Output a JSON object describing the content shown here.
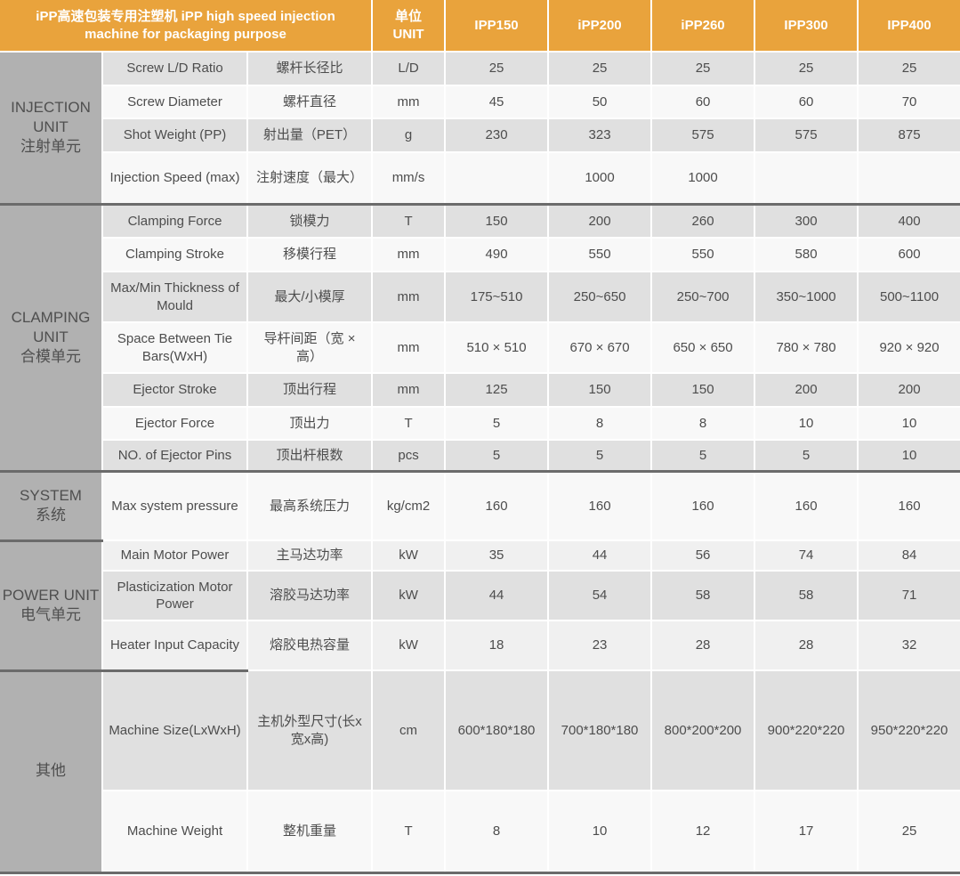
{
  "header": {
    "title": "iPP高速包装专用注塑机 iPP high speed injection machine for packaging purpose",
    "unit_label": "单位\nUNIT",
    "models": [
      "IPP150",
      "iPP200",
      "iPP260",
      "IPP300",
      "IPP400"
    ]
  },
  "colors": {
    "accent_orange": "#E9A33C",
    "section_label_bg": "#B1B1B1",
    "row_gray": "#E0E0E0",
    "row_white": "#F8F8F8",
    "row_light": "#F0F0F0",
    "section_divider": "#6B6B6B",
    "text": "#4D4D4D"
  },
  "sections": [
    {
      "label_en": "INJECTION UNIT",
      "label_zh": "注射单元",
      "rows": [
        {
          "name_en": "Screw L/D Ratio",
          "name_zh": "螺杆长径比",
          "unit": "L/D",
          "values": [
            "25",
            "25",
            "25",
            "25",
            "25"
          ],
          "shade": "gray"
        },
        {
          "name_en": "Screw Diameter",
          "name_zh": "螺杆直径",
          "unit": "mm",
          "values": [
            "45",
            "50",
            "60",
            "60",
            "70"
          ],
          "shade": "white"
        },
        {
          "name_en": "Shot Weight (PP)",
          "name_zh": "射出量（PET）",
          "unit": "g",
          "values": [
            "230",
            "323",
            "575",
            "575",
            "875"
          ],
          "shade": "gray"
        },
        {
          "name_en": "Injection Speed (max)",
          "name_zh": "注射速度（最大）",
          "unit": "mm/s",
          "values": [
            "",
            "1000",
            "1000",
            "",
            ""
          ],
          "shade": "white"
        }
      ]
    },
    {
      "label_en": "CLAMPING UNIT",
      "label_zh": "合模单元",
      "rows": [
        {
          "name_en": "Clamping Force",
          "name_zh": "锁模力",
          "unit": "T",
          "values": [
            "150",
            "200",
            "260",
            "300",
            "400"
          ],
          "shade": "gray"
        },
        {
          "name_en": "Clamping Stroke",
          "name_zh": "移模行程",
          "unit": "mm",
          "values": [
            "490",
            "550",
            "550",
            "580",
            "600"
          ],
          "shade": "white"
        },
        {
          "name_en": "Max/Min Thickness of Mould",
          "name_zh": "最大/小模厚",
          "unit": "mm",
          "values": [
            "175~510",
            "250~650",
            "250~700",
            "350~1000",
            "500~1100"
          ],
          "shade": "gray"
        },
        {
          "name_en": "Space Between Tie Bars(WxH)",
          "name_zh": "导杆间距（宽 × 高）",
          "unit": "mm",
          "values": [
            "510 × 510",
            "670 × 670",
            "650 × 650",
            "780 × 780",
            "920 × 920"
          ],
          "shade": "white"
        },
        {
          "name_en": "Ejector Stroke",
          "name_zh": "顶出行程",
          "unit": "mm",
          "values": [
            "125",
            "150",
            "150",
            "200",
            "200"
          ],
          "shade": "gray"
        },
        {
          "name_en": "Ejector Force",
          "name_zh": "顶出力",
          "unit": "T",
          "values": [
            "5",
            "8",
            "8",
            "10",
            "10"
          ],
          "shade": "white"
        },
        {
          "name_en": "NO. of Ejector Pins",
          "name_zh": "顶出杆根数",
          "unit": "pcs",
          "values": [
            "5",
            "5",
            "5",
            "5",
            "10"
          ],
          "shade": "gray"
        }
      ]
    },
    {
      "label_en": "SYSTEM",
      "label_zh": "系统",
      "rows": [
        {
          "name_en": "Max system pressure",
          "name_zh": "最高系统压力",
          "unit": "kg/cm2",
          "values": [
            "160",
            "160",
            "160",
            "160",
            "160"
          ],
          "shade": "white"
        }
      ]
    },
    {
      "label_en": "POWER UNIT",
      "label_zh": "电气单元",
      "rows": [
        {
          "name_en": "Main Motor Power",
          "name_zh": "主马达功率",
          "unit": "kW",
          "values": [
            "35",
            "44",
            "56",
            "74",
            "84"
          ],
          "shade": "light"
        },
        {
          "name_en": "Plasticization Motor Power",
          "name_zh": "溶胶马达功率",
          "unit": "kW",
          "values": [
            "44",
            "54",
            "58",
            "58",
            "71"
          ],
          "shade": "gray"
        },
        {
          "name_en": "Heater Input Capacity",
          "name_zh": "熔胶电热容量",
          "unit": "kW",
          "values": [
            "18",
            "23",
            "28",
            "28",
            "32"
          ],
          "shade": "light"
        }
      ]
    },
    {
      "label_en": "",
      "label_zh": "其他",
      "rows": [
        {
          "name_en": "Machine Size(LxWxH)",
          "name_zh": "主机外型尺寸(长x宽x高)",
          "unit": "cm",
          "values": [
            "600*180*180",
            "700*180*180",
            "800*200*200",
            "900*220*220",
            "950*220*220"
          ],
          "shade": "gray"
        },
        {
          "name_en": "Machine Weight",
          "name_zh": "整机重量",
          "unit": "T",
          "values": [
            "8",
            "10",
            "12",
            "17",
            "25"
          ],
          "shade": "white"
        }
      ]
    }
  ]
}
